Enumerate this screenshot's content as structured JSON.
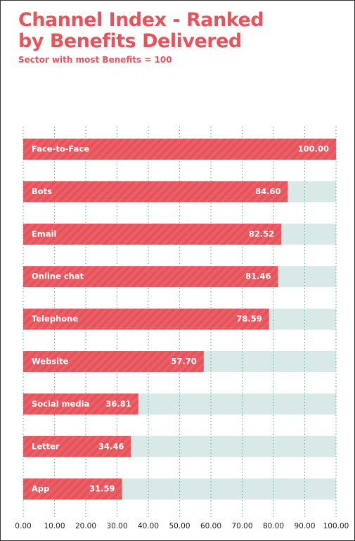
{
  "chart_data": {
    "type": "bar",
    "orientation": "horizontal",
    "title": "Channel Index - Ranked by Benefits Delivered",
    "subtitle": "Sector with most Benefits = 100",
    "categories": [
      "Face-to-Face",
      "Bots",
      "Email",
      "Online chat",
      "Telephone",
      "Website",
      "Social media",
      "Letter",
      "App"
    ],
    "values": [
      100,
      84.6,
      82.52,
      81.46,
      78.59,
      57.7,
      36.81,
      34.46,
      31.59
    ],
    "value_labels": [
      "100.00",
      "84.60",
      "82.52",
      "81.46",
      "78.59",
      "57.70",
      "36.81",
      "34.46",
      "31.59"
    ],
    "color": "#e8525a",
    "xlim": [
      0,
      100
    ],
    "xticks": [
      {
        "value": 0,
        "label": "0.00"
      },
      {
        "value": 10,
        "label": "10.00"
      },
      {
        "value": 20,
        "label": "20.00"
      },
      {
        "value": 30,
        "label": "30.00"
      },
      {
        "value": 40,
        "label": "40.00"
      },
      {
        "value": 50,
        "label": "50.00"
      },
      {
        "value": 60,
        "label": "60.00"
      },
      {
        "value": 70,
        "label": "70.00"
      },
      {
        "value": 80,
        "label": "80.00"
      },
      {
        "value": 90,
        "label": "90.00"
      },
      {
        "value": 100,
        "label": "100.00"
      }
    ],
    "grid": true
  }
}
